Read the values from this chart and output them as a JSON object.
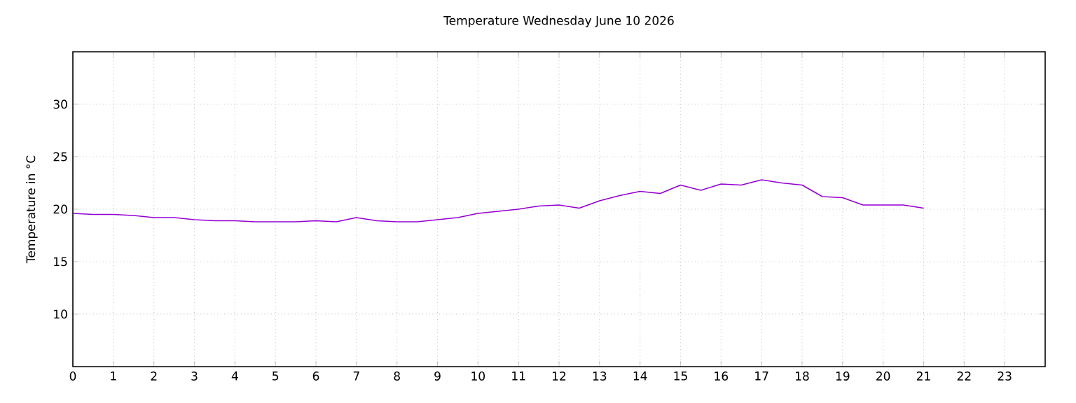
{
  "chart_data": {
    "type": "line",
    "title": "Temperature Wednesday June 10 2026",
    "ylabel": "Temperature in °C",
    "x": [
      0,
      0.5,
      1,
      1.5,
      2,
      2.5,
      3,
      3.5,
      4,
      4.5,
      5,
      5.5,
      6,
      6.5,
      7,
      7.5,
      8,
      8.5,
      9,
      9.5,
      10,
      10.5,
      11,
      11.5,
      12,
      12.5,
      13,
      13.5,
      14,
      14.5,
      15,
      15.5,
      16,
      16.5,
      17,
      17.5,
      18,
      18.5,
      19,
      19.5,
      20,
      20.5,
      21
    ],
    "series": [
      {
        "color": "#9400d3",
        "values": [
          19.6,
          19.5,
          19.5,
          19.4,
          19.2,
          19.2,
          19.0,
          18.9,
          18.9,
          18.8,
          18.8,
          18.8,
          18.9,
          18.8,
          19.2,
          18.9,
          18.8,
          18.8,
          19.0,
          19.2,
          19.6,
          19.8,
          20.0,
          20.3,
          20.4,
          20.1,
          20.8,
          21.3,
          21.7,
          21.5,
          22.3,
          21.8,
          22.4,
          22.3,
          22.8,
          22.5,
          22.3,
          21.2,
          21.1,
          20.4,
          20.4,
          20.4,
          20.1
        ]
      }
    ],
    "xlim": [
      0,
      24
    ],
    "ylim": [
      5,
      35
    ],
    "xticks": [
      0,
      1,
      2,
      3,
      4,
      5,
      6,
      7,
      8,
      9,
      10,
      11,
      12,
      13,
      14,
      15,
      16,
      17,
      18,
      19,
      20,
      21,
      22,
      23
    ],
    "yticks": [
      10,
      15,
      20,
      25,
      30
    ],
    "grid": true,
    "line_style": "solid",
    "marker": "none"
  }
}
